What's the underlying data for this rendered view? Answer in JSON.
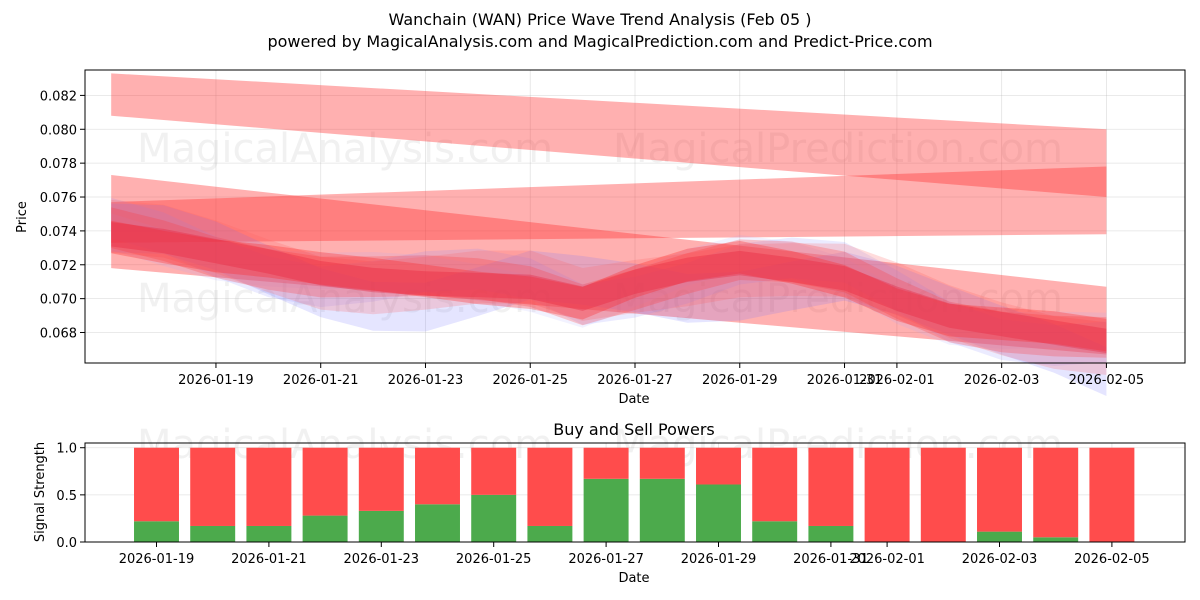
{
  "chart_data": [
    {
      "type": "area",
      "title": "Wanchain (WAN) Price Wave Trend Analysis (Feb 05 )",
      "subtitle": "powered by MagicalAnalysis.com and MagicalPrediction.com and Predict-Price.com",
      "xlabel": "Date",
      "ylabel": "Price",
      "x_range": [
        "2026-01-16T12:00",
        "2026-02-06T12:00"
      ],
      "ylim": [
        0.0662,
        0.0835
      ],
      "x_ticks": [
        "2026-01-19",
        "2026-01-21",
        "2026-01-23",
        "2026-01-25",
        "2026-01-27",
        "2026-01-29",
        "2026-01-31",
        "2026-02-01",
        "2026-02-03",
        "2026-02-05"
      ],
      "y_ticks": [
        "0.068",
        "0.070",
        "0.072",
        "0.074",
        "0.076",
        "0.078",
        "0.080",
        "0.082"
      ],
      "watermarks": [
        "MagicalAnalysis.com",
        "MagicalPrediction.com"
      ],
      "x": [
        "2026-01-17",
        "2026-01-18",
        "2026-01-19",
        "2026-01-20",
        "2026-01-21",
        "2026-01-22",
        "2026-01-23",
        "2026-01-24",
        "2026-01-25",
        "2026-01-26",
        "2026-01-27",
        "2026-01-28",
        "2026-01-29",
        "2026-01-30",
        "2026-01-31",
        "2026-02-01",
        "2026-02-02",
        "2026-02-03",
        "2026-02-04",
        "2026-02-05"
      ],
      "center_line": [
        0.0738,
        0.0734,
        0.0728,
        0.0722,
        0.0715,
        0.0711,
        0.0709,
        0.0708,
        0.0707,
        0.07,
        0.071,
        0.0717,
        0.0721,
        0.0717,
        0.0712,
        0.07,
        0.069,
        0.0685,
        0.068,
        0.0675
      ],
      "band_width": 0.0012,
      "blue_spread": 0.0016,
      "trend_bands": [
        {
          "x": [
            "2026-01-17",
            "2026-02-05"
          ],
          "upper": [
            0.0833,
            0.08
          ],
          "lower": [
            0.0808,
            0.076
          ]
        },
        {
          "x": [
            "2026-01-17",
            "2026-02-05"
          ],
          "upper": [
            0.0757,
            0.0778
          ],
          "lower": [
            0.0733,
            0.0738
          ]
        },
        {
          "x": [
            "2026-01-17",
            "2026-02-05"
          ],
          "upper": [
            0.0773,
            0.0707
          ],
          "lower": [
            0.0718,
            0.0667
          ]
        }
      ]
    },
    {
      "type": "bar",
      "title": "Buy and Sell Powers",
      "xlabel": "Date",
      "ylabel": "Signal Strength",
      "ylim": [
        0,
        1.05
      ],
      "y_ticks": [
        "0.0",
        "0.5",
        "1.0"
      ],
      "x_ticks": [
        "2026-01-19",
        "2026-01-21",
        "2026-01-23",
        "2026-01-25",
        "2026-01-27",
        "2026-01-29",
        "2026-01-31",
        "2026-02-01",
        "2026-02-03",
        "2026-02-05"
      ],
      "categories": [
        "2026-01-19",
        "2026-01-20",
        "2026-01-21",
        "2026-01-22",
        "2026-01-23",
        "2026-01-24",
        "2026-01-25",
        "2026-01-26",
        "2026-01-27",
        "2026-01-28",
        "2026-01-29",
        "2026-01-30",
        "2026-01-31",
        "2026-02-01",
        "2026-02-02",
        "2026-02-03",
        "2026-02-04",
        "2026-02-05"
      ],
      "series": [
        {
          "name": "Buy",
          "color": "#4caa4c",
          "values": [
            0.22,
            0.17,
            0.17,
            0.28,
            0.33,
            0.4,
            0.5,
            0.17,
            0.67,
            0.67,
            0.61,
            0.22,
            0.17,
            0.0,
            0.0,
            0.11,
            0.05,
            0.0
          ]
        },
        {
          "name": "Sell",
          "color": "#ff4c4c",
          "values": [
            0.78,
            0.83,
            0.83,
            0.72,
            0.67,
            0.6,
            0.5,
            0.83,
            0.33,
            0.33,
            0.39,
            0.78,
            0.83,
            1.0,
            1.0,
            0.89,
            0.95,
            1.0
          ]
        }
      ],
      "watermarks": [
        "MagicalAnalysis.com",
        "MagicalPrediction.com"
      ]
    }
  ]
}
